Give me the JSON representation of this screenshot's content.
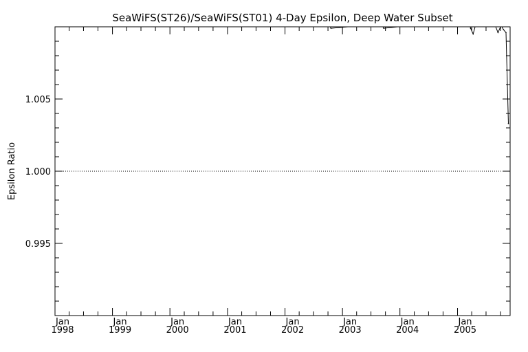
{
  "chart_data": {
    "type": "line",
    "title": "SeaWiFS(ST26)/SeaWiFS(ST01) 4-Day Epsilon, Deep Water Subset",
    "xlabel": "",
    "ylabel": "Epsilon Ratio",
    "xlim": [
      "1998-01-01",
      "2005-12-01"
    ],
    "ylim": [
      0.99,
      1.01
    ],
    "y_ticks": [
      {
        "value": 0.995,
        "label": "0.995"
      },
      {
        "value": 1.0,
        "label": "1.000"
      },
      {
        "value": 1.005,
        "label": "1.005"
      }
    ],
    "x_ticks": [
      {
        "date": "1998-01-01",
        "month": "Jan",
        "year": "1998"
      },
      {
        "date": "1999-01-01",
        "month": "Jan",
        "year": "1999"
      },
      {
        "date": "2000-01-01",
        "month": "Jan",
        "year": "2000"
      },
      {
        "date": "2001-01-01",
        "month": "Jan",
        "year": "2001"
      },
      {
        "date": "2002-01-01",
        "month": "Jan",
        "year": "2002"
      },
      {
        "date": "2003-01-01",
        "month": "Jan",
        "year": "2003"
      },
      {
        "date": "2004-01-01",
        "month": "Jan",
        "year": "2004"
      },
      {
        "date": "2005-01-01",
        "month": "Jan",
        "year": "2005"
      }
    ],
    "reference_line": {
      "y": 1.0,
      "style": "dotted"
    },
    "grid": false,
    "series": [
      {
        "x": [
          "2002-10-05",
          "2002-10-20",
          "2003-09-05",
          "2003-09-20",
          "2005-03-10",
          "2005-03-25",
          "2005-04-10",
          "2005-04-25",
          "2005-08-10",
          "2005-08-28",
          "2005-09-15",
          "2005-10-05",
          "2005-10-20",
          "2005-11-05",
          "2005-11-20"
        ],
        "y": [
          1.0102,
          1.0099,
          1.0102,
          1.0099,
          1.0105,
          1.0099,
          1.0095,
          1.0101,
          1.0105,
          1.0101,
          1.0096,
          1.0101,
          1.0098,
          1.0096,
          1.0033
        ],
        "color": "#000000"
      }
    ]
  }
}
